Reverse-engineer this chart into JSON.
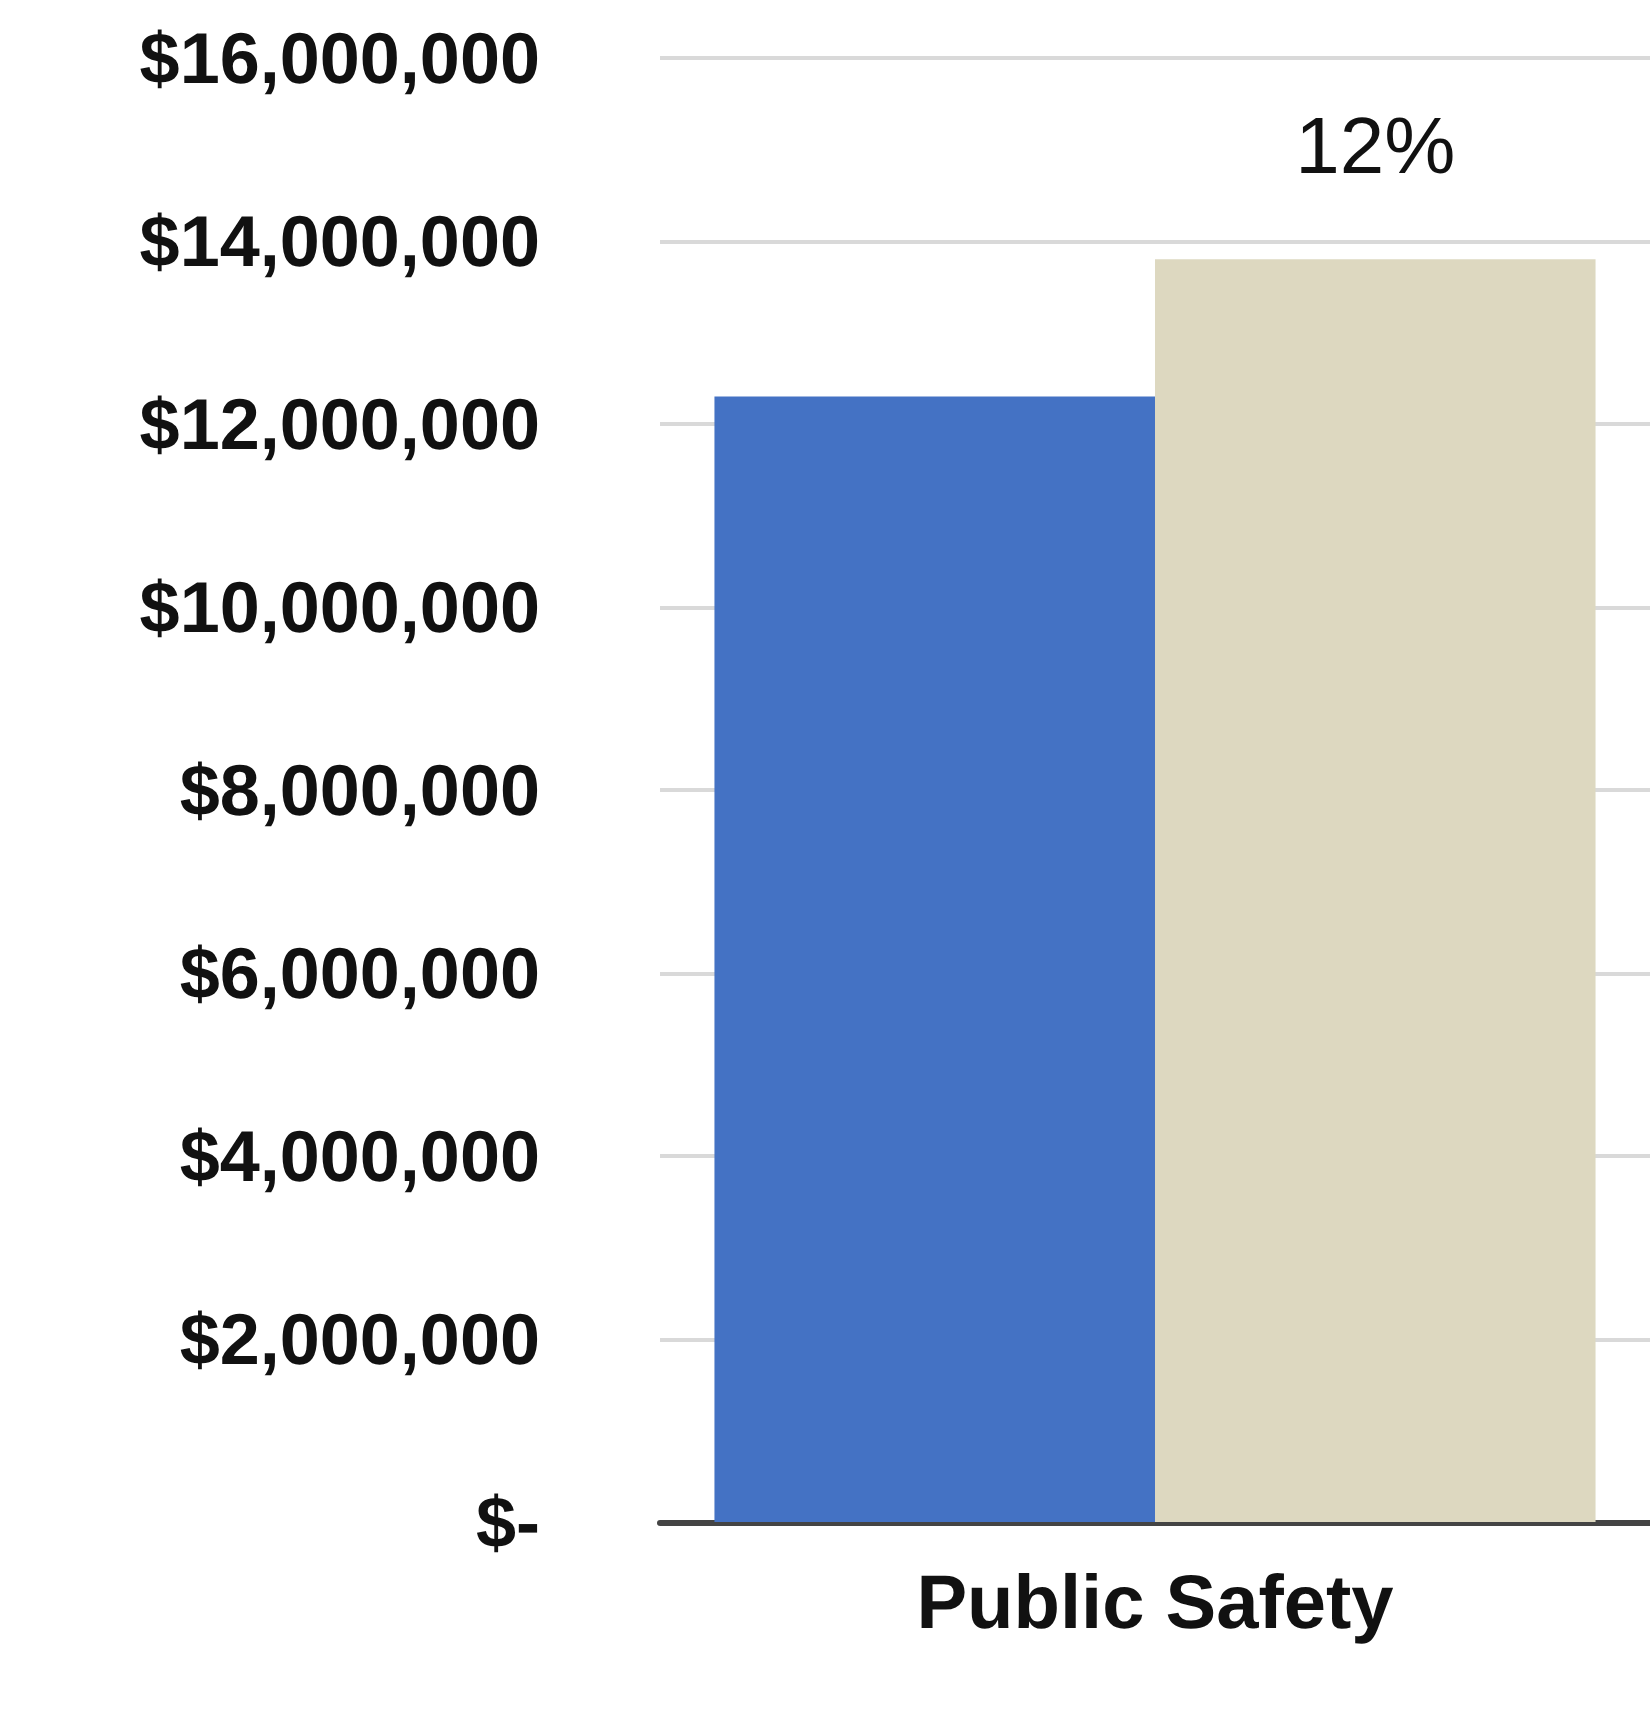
{
  "chart_data": {
    "type": "bar",
    "categories": [
      "Public Safety"
    ],
    "series": [
      {
        "color": "#4472c4",
        "values": [
          12300000
        ]
      },
      {
        "color": "#ddd8c0",
        "values": [
          13800000
        ]
      }
    ],
    "ylim": [
      0,
      16000000
    ],
    "yticks": [
      {
        "value": 0,
        "label": "$-"
      },
      {
        "value": 2000000,
        "label": "$2,000,000"
      },
      {
        "value": 4000000,
        "label": "$4,000,000"
      },
      {
        "value": 6000000,
        "label": "$6,000,000"
      },
      {
        "value": 8000000,
        "label": "$8,000,000"
      },
      {
        "value": 10000000,
        "label": "$10,000,000"
      },
      {
        "value": 12000000,
        "label": "$12,000,000"
      },
      {
        "value": 14000000,
        "label": "$14,000,000"
      },
      {
        "value": 16000000,
        "label": "$16,000,000"
      }
    ],
    "annotations": [
      {
        "text": "12%",
        "x": "Public Safety",
        "y": 13800000
      }
    ],
    "grid": "y"
  }
}
